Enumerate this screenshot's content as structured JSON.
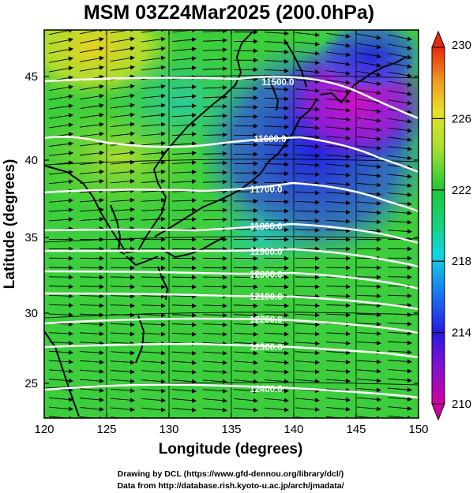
{
  "title": "MSM 03Z24Mar2025 (200.0hPa)",
  "xlabel": "Longitude (degrees)",
  "ylabel": "Latitude  (degrees)",
  "x_ticks": [
    "120",
    "125",
    "130",
    "135",
    "140",
    "145",
    "150"
  ],
  "y_ticks": [
    "25",
    "30",
    "35",
    "40",
    "45"
  ],
  "colorbar": {
    "ticks": [
      "210",
      "214",
      "218",
      "222",
      "226",
      "230"
    ],
    "min": 210,
    "max": 230,
    "colors": [
      "#c8009a",
      "#3a10d8",
      "#10c8e8",
      "#20d060",
      "#c8e828",
      "#f0a020",
      "#e83010"
    ]
  },
  "contours": [
    {
      "label": "11500.0"
    },
    {
      "label": "11600.0"
    },
    {
      "label": "11700.0"
    },
    {
      "label": "11800.0"
    },
    {
      "label": "11900.0"
    },
    {
      "label": "12000.0"
    },
    {
      "label": "12100.0"
    },
    {
      "label": "12200.0"
    },
    {
      "label": "12300.0"
    },
    {
      "label": "12400.0"
    }
  ],
  "credits": [
    "Drawing by DCL (https://www.gfd-dennou.org/library/dcl/)",
    "Data from http://database.rish.kyoto-u.ac.jp/arch/jmadata/"
  ]
}
